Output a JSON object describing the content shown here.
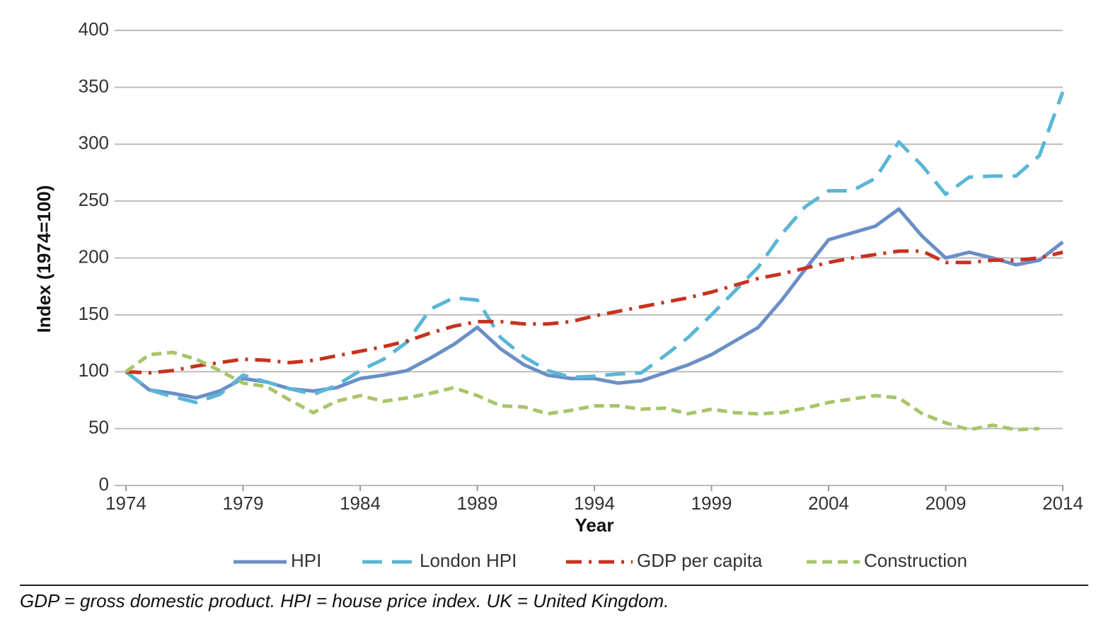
{
  "chart_data": {
    "type": "line",
    "x_label": "Year",
    "y_label": "Index (1974=100)",
    "x": [
      1974,
      1975,
      1976,
      1977,
      1978,
      1979,
      1980,
      1981,
      1982,
      1983,
      1984,
      1985,
      1986,
      1987,
      1988,
      1989,
      1990,
      1991,
      1992,
      1993,
      1994,
      1995,
      1996,
      1997,
      1998,
      1999,
      2000,
      2001,
      2002,
      2003,
      2004,
      2005,
      2006,
      2007,
      2008,
      2009,
      2010,
      2011,
      2012,
      2013,
      2014
    ],
    "xlim": [
      1974,
      2014
    ],
    "xticks": [
      1974,
      1979,
      1984,
      1989,
      1994,
      1999,
      2004,
      2009,
      2014
    ],
    "ylim": [
      0,
      400
    ],
    "yticks": [
      0,
      50,
      100,
      150,
      200,
      250,
      300,
      350,
      400
    ],
    "grid": true,
    "legend": "bottom",
    "series": [
      {
        "name": "HPI",
        "color": "#6a8fc6",
        "style": "solid",
        "values": [
          100,
          84,
          81,
          77,
          83,
          94,
          91,
          85,
          83,
          86,
          94,
          97,
          101,
          112,
          124,
          139,
          120,
          106,
          97,
          94,
          94,
          90,
          92,
          99,
          106,
          115,
          127,
          139,
          163,
          190,
          216,
          222,
          228,
          243,
          219,
          200,
          205,
          200,
          194,
          198,
          214
        ]
      },
      {
        "name": "London HPI",
        "color": "#5ab6d6",
        "style": "dashed",
        "values": [
          100,
          84,
          78,
          73,
          80,
          97,
          91,
          85,
          80,
          88,
          101,
          111,
          126,
          155,
          165,
          163,
          130,
          113,
          101,
          95,
          96,
          98,
          99,
          114,
          130,
          150,
          171,
          192,
          221,
          245,
          259,
          259,
          270,
          302,
          281,
          256,
          271,
          272,
          272,
          290,
          346
        ]
      },
      {
        "name": "GDP per capita",
        "color": "#c8321f",
        "style": "dashdot",
        "values": [
          100,
          99,
          101,
          105,
          108,
          111,
          110,
          108,
          110,
          114,
          118,
          122,
          127,
          134,
          140,
          144,
          144,
          142,
          142,
          144,
          149,
          153,
          157,
          161,
          165,
          170,
          176,
          182,
          186,
          191,
          196,
          200,
          203,
          206,
          206,
          196,
          196,
          198,
          198,
          200,
          205
        ]
      },
      {
        "name": "Construction",
        "color": "#a8c569",
        "style": "dotted",
        "values": [
          100,
          115,
          117,
          111,
          101,
          90,
          87,
          75,
          64,
          74,
          79,
          74,
          77,
          81,
          86,
          79,
          70,
          69,
          63,
          66,
          70,
          70,
          67,
          68,
          63,
          67,
          64,
          63,
          64,
          68,
          73,
          76,
          79,
          77,
          63,
          55,
          49,
          53,
          49,
          50,
          null
        ]
      }
    ],
    "footnote": "GDP = gross domestic product. HPI = house price index. UK = United Kingdom."
  }
}
